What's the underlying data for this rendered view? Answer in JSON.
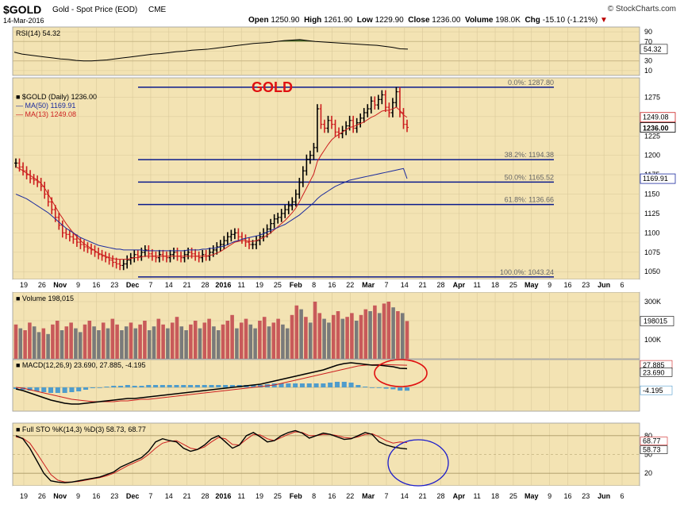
{
  "header": {
    "symbol": "$GOLD",
    "name": "Gold - Spot Price (EOD)",
    "exchange": "CME",
    "date": "14-Mar-2016",
    "watermark": "© StockCharts.com",
    "open_label": "Open",
    "open": "1250.90",
    "high_label": "High",
    "high": "1261.90",
    "low_label": "Low",
    "low": "1229.90",
    "close_label": "Close",
    "close": "1236.00",
    "volume_label": "Volume",
    "volume": "198.0K",
    "chg_label": "Chg",
    "chg": "-15.10 (-1.21%)"
  },
  "colors": {
    "panel_bg": "#f3e3b3",
    "outer_bg": "#ffffff",
    "fib_line": "#0b1a8c",
    "ma50": "#1b2b9e",
    "ma13": "#cc1f1f",
    "vol_up": "#c85a5a",
    "vol_down": "#7a7a7a",
    "rsi_fill": "#4d6e2a",
    "annot_red": "#e01010",
    "annot_blue": "#1a1acc"
  },
  "chart_data": [
    {
      "type": "line",
      "panel": "rsi",
      "label": "RSI(14) 54.32",
      "current": "54.32",
      "ylim": [
        0,
        100
      ],
      "ticks": [
        "90",
        "70",
        "50",
        "30",
        "10"
      ],
      "values": [
        48,
        44,
        42,
        40,
        38,
        36,
        34,
        33,
        31,
        30,
        30,
        31,
        32,
        34,
        36,
        38,
        40,
        42,
        44,
        45,
        47,
        49,
        50,
        52,
        53,
        54,
        56,
        58,
        60,
        62,
        64,
        66,
        67,
        68,
        70,
        72,
        73,
        74,
        72,
        70,
        69,
        68,
        67,
        66,
        65,
        64,
        63,
        62,
        60,
        58,
        55,
        54.32
      ]
    },
    {
      "type": "line",
      "panel": "price",
      "title": "GOLD",
      "label": "$GOLD (Daily) 1236.00",
      "ma50_label": "MA(50) 1169.91",
      "ma13_label": "MA(13) 1249.08",
      "ma50_tag": "1169.91",
      "ma13_tag": "1249.08",
      "close_tag": "1236.00",
      "ylim": [
        1040,
        1300
      ],
      "ticks": [
        "1275",
        "1250",
        "1225",
        "1200",
        "1175",
        "1150",
        "1125",
        "1100",
        "1075",
        "1050"
      ],
      "fib_levels": [
        {
          "label": "0.0%: 1287.80",
          "value": 1287.8
        },
        {
          "label": "38.2%: 1194.38",
          "value": 1194.38
        },
        {
          "label": "50.0%: 1165.52",
          "value": 1165.52
        },
        {
          "label": "61.8%: 1136.66",
          "value": 1136.66
        },
        {
          "label": "100.0%: 1043.24",
          "value": 1043.24
        }
      ],
      "close": [
        1190,
        1185,
        1180,
        1175,
        1170,
        1168,
        1165,
        1160,
        1150,
        1140,
        1130,
        1120,
        1110,
        1100,
        1098,
        1095,
        1092,
        1088,
        1085,
        1082,
        1080,
        1078,
        1075,
        1072,
        1070,
        1068,
        1065,
        1062,
        1060,
        1058,
        1060,
        1065,
        1068,
        1072,
        1070,
        1075,
        1078,
        1073,
        1070,
        1068,
        1072,
        1070,
        1068,
        1072,
        1075,
        1070,
        1068,
        1072,
        1075,
        1073,
        1070,
        1068,
        1072,
        1070,
        1075,
        1078,
        1082,
        1085,
        1090,
        1095,
        1098,
        1100,
        1095,
        1092,
        1088,
        1085,
        1085,
        1090,
        1095,
        1100,
        1105,
        1112,
        1118,
        1120,
        1125,
        1130,
        1135,
        1140,
        1150,
        1165,
        1180,
        1195,
        1200,
        1210,
        1260,
        1240,
        1235,
        1245,
        1240,
        1230,
        1228,
        1232,
        1238,
        1245,
        1235,
        1242,
        1248,
        1255,
        1260,
        1270,
        1265,
        1272,
        1278,
        1262,
        1255,
        1268,
        1282,
        1255,
        1240,
        1236
      ],
      "ma13": [
        1185,
        1183,
        1180,
        1177,
        1174,
        1171,
        1168,
        1164,
        1158,
        1150,
        1142,
        1134,
        1126,
        1119,
        1112,
        1106,
        1100,
        1095,
        1090,
        1086,
        1083,
        1080,
        1077,
        1074,
        1072,
        1070,
        1068,
        1067,
        1066,
        1066,
        1066,
        1066,
        1067,
        1068,
        1068,
        1069,
        1070,
        1070,
        1070,
        1070,
        1070,
        1070,
        1070,
        1070,
        1070,
        1070,
        1070,
        1070,
        1070,
        1070,
        1070,
        1070,
        1070,
        1070,
        1071,
        1072,
        1074,
        1076,
        1079,
        1082,
        1085,
        1088,
        1089,
        1090,
        1090,
        1089,
        1089,
        1090,
        1092,
        1094,
        1097,
        1100,
        1104,
        1108,
        1112,
        1116,
        1121,
        1126,
        1132,
        1140,
        1149,
        1158,
        1167,
        1176,
        1192,
        1200,
        1207,
        1214,
        1220,
        1224,
        1227,
        1230,
        1233,
        1236,
        1237,
        1239,
        1241,
        1243,
        1246,
        1249,
        1251,
        1254,
        1257,
        1258,
        1258,
        1260,
        1262,
        1258,
        1252,
        1249.08
      ],
      "ma50": [
        1150,
        1148,
        1146,
        1144,
        1141,
        1138,
        1135,
        1132,
        1129,
        1126,
        1122,
        1118,
        1114,
        1110,
        1106,
        1103,
        1100,
        1097,
        1094,
        1092,
        1090,
        1088,
        1086,
        1084,
        1083,
        1082,
        1081,
        1080,
        1079,
        1079,
        1078,
        1078,
        1078,
        1078,
        1078,
        1078,
        1077,
        1077,
        1077,
        1077,
        1077,
        1077,
        1077,
        1077,
        1077,
        1077,
        1077,
        1077,
        1078,
        1078,
        1078,
        1078,
        1079,
        1079,
        1080,
        1080,
        1081,
        1082,
        1083,
        1085,
        1087,
        1089,
        1090,
        1092,
        1093,
        1094,
        1095,
        1096,
        1097,
        1099,
        1101,
        1103,
        1105,
        1107,
        1109,
        1111,
        1114,
        1117,
        1120,
        1123,
        1127,
        1131,
        1135,
        1139,
        1144,
        1148,
        1151,
        1154,
        1157,
        1160,
        1162,
        1164,
        1166,
        1168,
        1169,
        1170,
        1171,
        1172,
        1173,
        1174,
        1175,
        1176,
        1177,
        1178,
        1179,
        1180,
        1181,
        1182,
        1183,
        1169.91
      ]
    },
    {
      "type": "bar",
      "panel": "volume",
      "label": "Volume 198,015",
      "current": "198015",
      "ticks": [
        "300K",
        "200K",
        "100K"
      ],
      "ylim": [
        0,
        350000
      ],
      "values": [
        180000,
        160000,
        150000,
        190000,
        170000,
        140000,
        160000,
        130000,
        180000,
        200000,
        150000,
        170000,
        190000,
        160000,
        140000,
        180000,
        200000,
        170000,
        150000,
        190000,
        160000,
        210000,
        180000,
        150000,
        170000,
        190000,
        160000,
        180000,
        200000,
        150000,
        170000,
        210000,
        180000,
        160000,
        190000,
        220000,
        170000,
        150000,
        180000,
        200000,
        160000,
        190000,
        210000,
        170000,
        150000,
        180000,
        200000,
        230000,
        160000,
        190000,
        210000,
        180000,
        160000,
        200000,
        220000,
        170000,
        190000,
        210000,
        180000,
        160000,
        230000,
        280000,
        260000,
        220000,
        190000,
        300000,
        240000,
        210000,
        190000,
        230000,
        250000,
        210000,
        220000,
        240000,
        200000,
        230000,
        260000,
        250000,
        280000,
        240000,
        290000,
        300000,
        270000,
        250000,
        240000,
        198015
      ],
      "up": [
        1,
        0,
        1,
        1,
        0,
        0,
        1,
        0,
        1,
        1,
        0,
        1,
        1,
        0,
        0,
        1,
        1,
        0,
        0,
        1,
        0,
        1,
        1,
        0,
        0,
        1,
        0,
        1,
        1,
        0,
        0,
        1,
        1,
        0,
        1,
        1,
        0,
        0,
        1,
        1,
        0,
        1,
        1,
        0,
        0,
        1,
        1,
        1,
        0,
        1,
        1,
        0,
        0,
        1,
        1,
        0,
        1,
        1,
        0,
        0,
        1,
        1,
        0,
        1,
        0,
        1,
        1,
        0,
        0,
        1,
        1,
        0,
        1,
        1,
        0,
        1,
        1,
        0,
        1,
        0,
        1,
        1,
        0,
        1,
        0,
        1
      ]
    },
    {
      "type": "line",
      "panel": "macd",
      "label": "MACD(12,26,9) 23.690, 27.885, -4.195",
      "macd_tag": "23.690",
      "signal_tag": "27.885",
      "hist_tag": "-4.195",
      "ylim": [
        -30,
        35
      ],
      "macd": [
        -2,
        -4,
        -7,
        -10,
        -13,
        -16,
        -18,
        -20,
        -21,
        -21,
        -20,
        -19,
        -18,
        -17,
        -16,
        -15,
        -14,
        -14,
        -13,
        -12,
        -11,
        -10,
        -9,
        -8,
        -7,
        -6,
        -5,
        -4,
        -3,
        -2,
        -1,
        0,
        1,
        2,
        3,
        4,
        6,
        8,
        10,
        12,
        14,
        16,
        18,
        20,
        22,
        25,
        28,
        30,
        31,
        30,
        29,
        28,
        28,
        27,
        26,
        24,
        23.69
      ],
      "signal": [
        0,
        -1,
        -3,
        -5,
        -7,
        -9,
        -11,
        -13,
        -15,
        -16,
        -17,
        -18,
        -18,
        -18,
        -18,
        -17,
        -17,
        -16,
        -15,
        -15,
        -14,
        -13,
        -12,
        -11,
        -10,
        -9,
        -8,
        -7,
        -6,
        -5,
        -4,
        -3,
        -2,
        -1,
        0,
        1,
        2,
        3,
        5,
        7,
        9,
        11,
        13,
        15,
        17,
        19,
        21,
        23,
        25,
        27,
        28,
        28.5,
        28.7,
        28.6,
        28.4,
        28.1,
        27.885
      ],
      "hist": [
        -2,
        -3,
        -4,
        -5,
        -6,
        -7,
        -7,
        -7,
        -6,
        -5,
        -3,
        -1,
        0,
        1,
        2,
        2,
        3,
        2,
        2,
        3,
        3,
        3,
        3,
        3,
        3,
        3,
        3,
        3,
        3,
        3,
        3,
        3,
        3,
        3,
        3,
        3,
        4,
        5,
        5,
        5,
        5,
        5,
        5,
        5,
        5,
        6,
        7,
        7,
        6,
        3,
        1,
        -0.5,
        -0.7,
        -1.6,
        -2.4,
        -4.1,
        -4.195
      ]
    },
    {
      "type": "line",
      "panel": "stochastic",
      "label": "Full STO %K(14,3) %D(3) 58.73, 68.77",
      "k_tag": "58.73",
      "d_tag": "68.77",
      "ylim": [
        0,
        100
      ],
      "ticks": [
        "80",
        "50",
        "20"
      ],
      "k": [
        80,
        75,
        60,
        40,
        20,
        8,
        6,
        5,
        6,
        8,
        10,
        12,
        14,
        18,
        22,
        30,
        35,
        40,
        45,
        55,
        70,
        75,
        72,
        70,
        60,
        55,
        58,
        65,
        75,
        80,
        70,
        60,
        65,
        80,
        85,
        78,
        70,
        72,
        80,
        85,
        88,
        84,
        76,
        80,
        84,
        82,
        78,
        74,
        75,
        80,
        85,
        82,
        70,
        65,
        62,
        60,
        58.73
      ],
      "d": [
        78,
        76,
        68,
        52,
        35,
        18,
        9,
        6,
        6,
        7,
        9,
        11,
        13,
        16,
        20,
        26,
        32,
        37,
        42,
        50,
        60,
        68,
        71,
        72,
        66,
        60,
        58,
        62,
        70,
        77,
        75,
        66,
        65,
        74,
        82,
        81,
        75,
        72,
        77,
        82,
        86,
        85,
        80,
        80,
        82,
        82,
        80,
        77,
        76,
        78,
        82,
        83,
        78,
        72,
        68,
        70,
        68.77
      ]
    }
  ],
  "x_axis": {
    "labels": [
      "19",
      "26",
      "Nov",
      "9",
      "16",
      "23",
      "Dec",
      "7",
      "14",
      "21",
      "28",
      "2016",
      "11",
      "19",
      "25",
      "Feb",
      "8",
      "16",
      "22",
      "Mar",
      "7",
      "14",
      "21",
      "28",
      "Apr",
      "11",
      "18",
      "25",
      "May",
      "9",
      "16",
      "23",
      "Jun",
      "6"
    ]
  },
  "annotations": {
    "gold_title": "GOLD"
  }
}
